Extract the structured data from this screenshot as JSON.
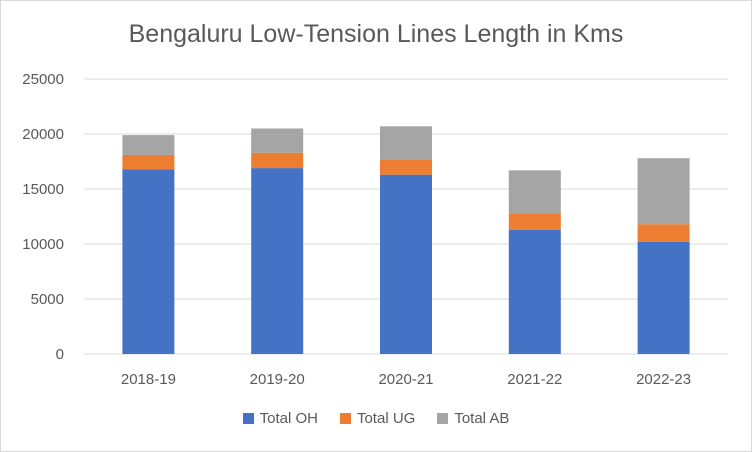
{
  "chart_data": {
    "type": "bar",
    "stacked": true,
    "title": "Bengaluru Low-Tension Lines Length in Kms",
    "categories": [
      "2018-19",
      "2019-20",
      "2020-21",
      "2021-22",
      "2022-23"
    ],
    "series": [
      {
        "name": "Total OH",
        "color": "#4472c4",
        "values": [
          16800,
          16900,
          16300,
          11300,
          10200
        ]
      },
      {
        "name": "Total UG",
        "color": "#ed7d31",
        "values": [
          1300,
          1400,
          1400,
          1500,
          1600
        ]
      },
      {
        "name": "Total AB",
        "color": "#a5a5a5",
        "values": [
          1800,
          2200,
          3000,
          3900,
          6000
        ]
      }
    ],
    "yticks": [
      "0",
      "5000",
      "10000",
      "15000",
      "20000",
      "25000"
    ],
    "ylim": [
      0,
      25000
    ],
    "xlabel": "",
    "ylabel": "",
    "grid": true,
    "legend_position": "bottom"
  }
}
